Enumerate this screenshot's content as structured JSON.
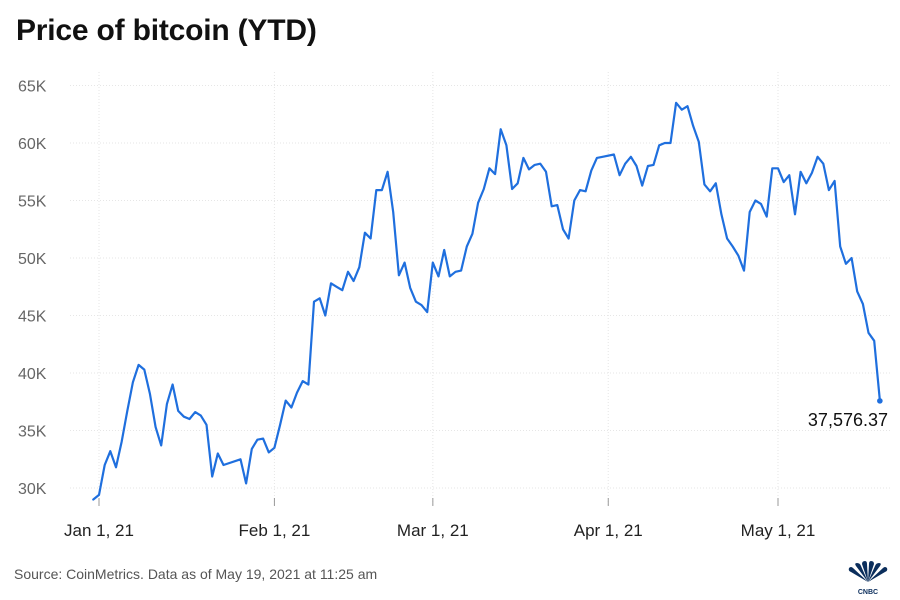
{
  "title": "Price of bitcoin (YTD)",
  "source": "Source: CoinMetrics. Data as of May 19, 2021 at 11:25 am",
  "logo_text": "CNBC",
  "colors": {
    "line": "#1f6fde",
    "grid": "#e6e6e6",
    "axis_text": "#666666"
  },
  "chart_data": {
    "type": "line",
    "title": "Price of bitcoin (YTD)",
    "xlabel": "",
    "ylabel": "",
    "x_tick_labels": [
      "Jan 1, 21",
      "Feb 1, 21",
      "Mar 1, 21",
      "Apr 1, 21",
      "May 1, 21"
    ],
    "x_tick_dates": [
      "2021-01-01",
      "2021-02-01",
      "2021-03-01",
      "2021-04-01",
      "2021-05-01"
    ],
    "xlim": [
      "2020-12-31",
      "2021-05-19"
    ],
    "y_ticks": [
      30000,
      35000,
      40000,
      45000,
      50000,
      55000,
      60000,
      65000
    ],
    "y_tick_labels": [
      "30K",
      "35K",
      "40K",
      "45K",
      "50K",
      "55K",
      "60K",
      "65K"
    ],
    "ylim": [
      28000,
      66000
    ],
    "grid": "horizontal",
    "end_label": "37,576.37",
    "series": [
      {
        "points": [
          [
            "2020-12-31",
            29000
          ],
          [
            "2021-01-01",
            29400
          ],
          [
            "2021-01-02",
            32000
          ],
          [
            "2021-01-03",
            33200
          ],
          [
            "2021-01-04",
            31800
          ],
          [
            "2021-01-05",
            34000
          ],
          [
            "2021-01-06",
            36700
          ],
          [
            "2021-01-07",
            39200
          ],
          [
            "2021-01-08",
            40700
          ],
          [
            "2021-01-09",
            40300
          ],
          [
            "2021-01-10",
            38200
          ],
          [
            "2021-01-11",
            35300
          ],
          [
            "2021-01-12",
            33700
          ],
          [
            "2021-01-13",
            37300
          ],
          [
            "2021-01-14",
            39000
          ],
          [
            "2021-01-15",
            36700
          ],
          [
            "2021-01-16",
            36200
          ],
          [
            "2021-01-17",
            36000
          ],
          [
            "2021-01-18",
            36600
          ],
          [
            "2021-01-19",
            36300
          ],
          [
            "2021-01-20",
            35500
          ],
          [
            "2021-01-21",
            31000
          ],
          [
            "2021-01-22",
            33000
          ],
          [
            "2021-01-23",
            32000
          ],
          [
            "2021-01-26",
            32500
          ],
          [
            "2021-01-27",
            30400
          ],
          [
            "2021-01-28",
            33400
          ],
          [
            "2021-01-29",
            34200
          ],
          [
            "2021-01-30",
            34300
          ],
          [
            "2021-01-31",
            33100
          ],
          [
            "2021-02-01",
            33500
          ],
          [
            "2021-02-02",
            35500
          ],
          [
            "2021-02-03",
            37600
          ],
          [
            "2021-02-04",
            37000
          ],
          [
            "2021-02-05",
            38300
          ],
          [
            "2021-02-06",
            39300
          ],
          [
            "2021-02-07",
            39000
          ],
          [
            "2021-02-08",
            46200
          ],
          [
            "2021-02-09",
            46500
          ],
          [
            "2021-02-10",
            45000
          ],
          [
            "2021-02-11",
            47800
          ],
          [
            "2021-02-12",
            47500
          ],
          [
            "2021-02-13",
            47200
          ],
          [
            "2021-02-14",
            48800
          ],
          [
            "2021-02-15",
            48000
          ],
          [
            "2021-02-16",
            49200
          ],
          [
            "2021-02-17",
            52200
          ],
          [
            "2021-02-18",
            51700
          ],
          [
            "2021-02-19",
            55900
          ],
          [
            "2021-02-20",
            55900
          ],
          [
            "2021-02-21",
            57500
          ],
          [
            "2021-02-22",
            54000
          ],
          [
            "2021-02-23",
            48500
          ],
          [
            "2021-02-24",
            49600
          ],
          [
            "2021-02-25",
            47400
          ],
          [
            "2021-02-26",
            46200
          ],
          [
            "2021-02-27",
            45900
          ],
          [
            "2021-02-28",
            45300
          ],
          [
            "2021-03-01",
            49600
          ],
          [
            "2021-03-02",
            48400
          ],
          [
            "2021-03-03",
            50700
          ],
          [
            "2021-03-04",
            48400
          ],
          [
            "2021-03-05",
            48800
          ],
          [
            "2021-03-06",
            48900
          ],
          [
            "2021-03-07",
            51000
          ],
          [
            "2021-03-08",
            52100
          ],
          [
            "2021-03-09",
            54800
          ],
          [
            "2021-03-10",
            56000
          ],
          [
            "2021-03-11",
            57800
          ],
          [
            "2021-03-12",
            57300
          ],
          [
            "2021-03-13",
            61200
          ],
          [
            "2021-03-14",
            59800
          ],
          [
            "2021-03-15",
            56000
          ],
          [
            "2021-03-16",
            56500
          ],
          [
            "2021-03-17",
            58700
          ],
          [
            "2021-03-18",
            57700
          ],
          [
            "2021-03-19",
            58100
          ],
          [
            "2021-03-20",
            58200
          ],
          [
            "2021-03-21",
            57500
          ],
          [
            "2021-03-22",
            54500
          ],
          [
            "2021-03-23",
            54600
          ],
          [
            "2021-03-24",
            52500
          ],
          [
            "2021-03-25",
            51700
          ],
          [
            "2021-03-26",
            55000
          ],
          [
            "2021-03-27",
            55900
          ],
          [
            "2021-03-28",
            55800
          ],
          [
            "2021-03-29",
            57600
          ],
          [
            "2021-03-30",
            58700
          ],
          [
            "2021-03-31",
            58800
          ],
          [
            "2021-04-02",
            59000
          ],
          [
            "2021-04-03",
            57200
          ],
          [
            "2021-04-04",
            58200
          ],
          [
            "2021-04-05",
            58800
          ],
          [
            "2021-04-06",
            58000
          ],
          [
            "2021-04-07",
            56300
          ],
          [
            "2021-04-08",
            58000
          ],
          [
            "2021-04-09",
            58100
          ],
          [
            "2021-04-10",
            59800
          ],
          [
            "2021-04-11",
            60000
          ],
          [
            "2021-04-12",
            60000
          ],
          [
            "2021-04-13",
            63500
          ],
          [
            "2021-04-14",
            62900
          ],
          [
            "2021-04-15",
            63200
          ],
          [
            "2021-04-16",
            61500
          ],
          [
            "2021-04-17",
            60100
          ],
          [
            "2021-04-18",
            56400
          ],
          [
            "2021-04-19",
            55800
          ],
          [
            "2021-04-20",
            56500
          ],
          [
            "2021-04-21",
            53800
          ],
          [
            "2021-04-22",
            51700
          ],
          [
            "2021-04-23",
            51000
          ],
          [
            "2021-04-24",
            50200
          ],
          [
            "2021-04-25",
            48900
          ],
          [
            "2021-04-26",
            54000
          ],
          [
            "2021-04-27",
            55000
          ],
          [
            "2021-04-28",
            54700
          ],
          [
            "2021-04-29",
            53600
          ],
          [
            "2021-04-30",
            57800
          ],
          [
            "2021-05-01",
            57800
          ],
          [
            "2021-05-02",
            56600
          ],
          [
            "2021-05-03",
            57200
          ],
          [
            "2021-05-04",
            53800
          ],
          [
            "2021-05-05",
            57500
          ],
          [
            "2021-05-06",
            56500
          ],
          [
            "2021-05-07",
            57400
          ],
          [
            "2021-05-08",
            58800
          ],
          [
            "2021-05-09",
            58200
          ],
          [
            "2021-05-10",
            55900
          ],
          [
            "2021-05-11",
            56700
          ],
          [
            "2021-05-12",
            51000
          ],
          [
            "2021-05-13",
            49500
          ],
          [
            "2021-05-14",
            50000
          ],
          [
            "2021-05-15",
            47100
          ],
          [
            "2021-05-16",
            46000
          ],
          [
            "2021-05-17",
            43500
          ],
          [
            "2021-05-18",
            42800
          ],
          [
            "2021-05-19",
            37576.37
          ]
        ]
      }
    ]
  }
}
